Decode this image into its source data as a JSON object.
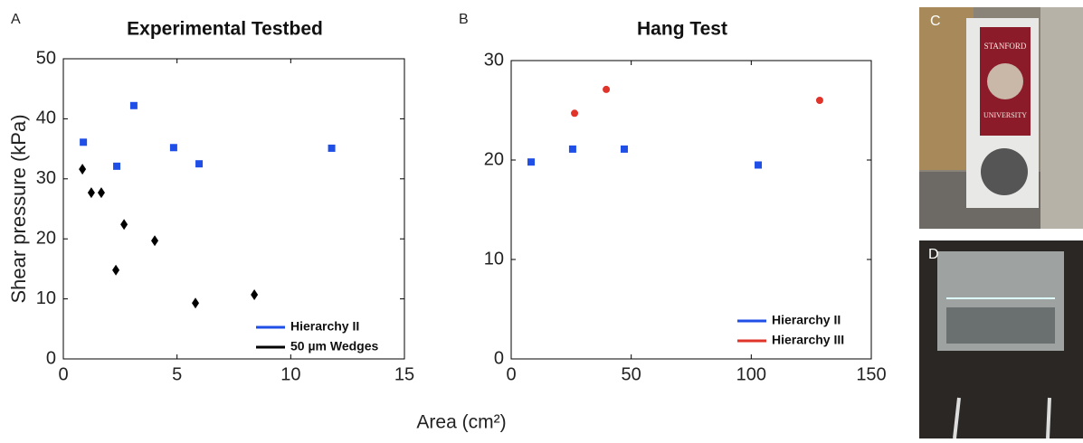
{
  "chart_data": [
    {
      "type": "scatter",
      "panel_label": "A",
      "title": "Experimental Testbed",
      "y_label": "Shear pressure (kPa)",
      "xlim": [
        0,
        15
      ],
      "xticks": [
        0,
        5,
        10,
        15
      ],
      "ylim": [
        0,
        50
      ],
      "yticks": [
        0,
        10,
        20,
        30,
        40,
        50
      ],
      "legend": "lower right",
      "series": [
        {
          "name": "Hierarchy II",
          "color": "#1f4fe6",
          "marker": "square",
          "x": [
            0.88,
            3.1,
            2.35,
            4.85,
            5.97,
            11.8
          ],
          "values": [
            36.1,
            42.2,
            32.1,
            35.2,
            32.5,
            35.1
          ]
        },
        {
          "name": "50 µm Wedges",
          "color": "#000000",
          "marker": "diamond",
          "x": [
            0.84,
            1.23,
            1.67,
            2.67,
            2.31,
            4.02,
            5.81,
            8.4
          ],
          "values": [
            31.6,
            27.7,
            27.7,
            22.4,
            14.8,
            19.7,
            9.3,
            10.7
          ]
        }
      ]
    },
    {
      "type": "scatter",
      "panel_label": "B",
      "title": "Hang Test",
      "xlim": [
        0,
        150
      ],
      "xticks": [
        0,
        50,
        100,
        150
      ],
      "ylim": [
        0,
        30
      ],
      "yticks": [
        0,
        10,
        20,
        30
      ],
      "legend": "lower right",
      "series": [
        {
          "name": "Hierarchy II",
          "color": "#1f4fe6",
          "marker": "square",
          "x": [
            8.3,
            25.6,
            47.1,
            102.9
          ],
          "values": [
            19.8,
            21.1,
            21.1,
            19.5
          ]
        },
        {
          "name": "Hierarchy III",
          "color": "#e0332a",
          "marker": "circle",
          "x": [
            26.4,
            39.6,
            128.5
          ],
          "values": [
            24.7,
            27.1,
            26.0
          ]
        }
      ]
    }
  ],
  "x_label": "Area (cm²)",
  "photos": [
    {
      "label": "C",
      "texts": [
        "STANFORD",
        "UNIVERSITY"
      ]
    },
    {
      "label": "D"
    }
  ]
}
